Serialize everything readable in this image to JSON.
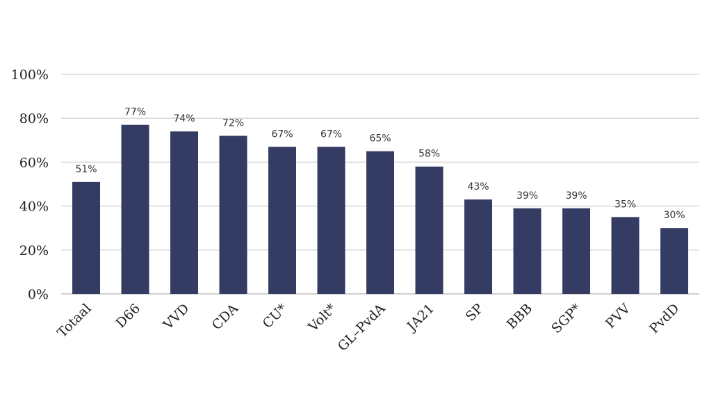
{
  "chart_data": {
    "type": "bar",
    "title": "",
    "xlabel": "",
    "ylabel": "",
    "categories": [
      "Totaal",
      "D66",
      "VVD",
      "CDA",
      "CU*",
      "Volt*",
      "GL–PvdA",
      "JA21",
      "SP",
      "BBB",
      "SGP*",
      "PVV",
      "PvdD"
    ],
    "values": [
      51,
      77,
      74,
      72,
      67,
      67,
      65,
      58,
      43,
      39,
      39,
      35,
      30
    ],
    "data_labels": [
      "51%",
      "77%",
      "74%",
      "72%",
      "67%",
      "67%",
      "65%",
      "58%",
      "43%",
      "39%",
      "39%",
      "35%",
      "30%"
    ],
    "ylim": [
      0,
      100
    ],
    "yticks": [
      0,
      20,
      40,
      60,
      80,
      100
    ],
    "ytick_labels": [
      "0%",
      "20%",
      "40%",
      "60%",
      "80%",
      "100%"
    ],
    "grid": true,
    "legend": "none",
    "bar_color": "#353c64"
  }
}
